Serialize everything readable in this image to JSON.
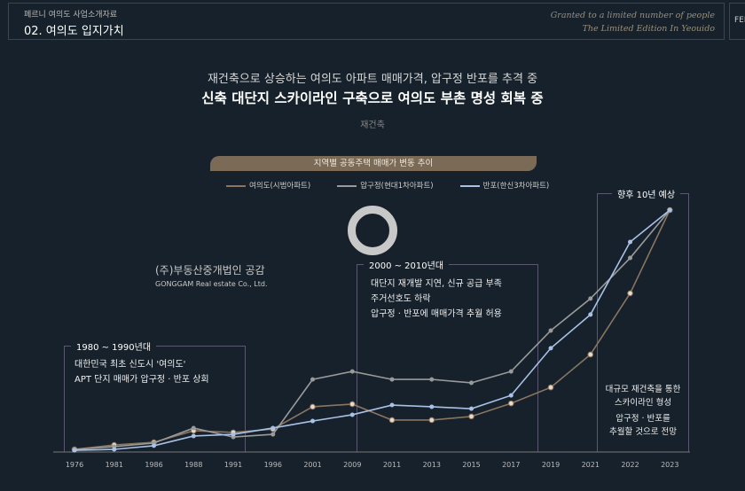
{
  "header": {
    "subtitle": "페르니 여의도 사업소개자료",
    "title": "02. 여의도 입지가치",
    "slogan_line1": "Granted to a limited number of people",
    "slogan_line2": "The Limited Edition In Yeouido",
    "logo": "FERNNI"
  },
  "headline": {
    "line1": "재건축으로 상승하는 여의도 아파트 매매가격, 압구정 반포를 추격 중",
    "line2": "신축 대단지 스카이라인 구축으로 여의도 부촌 명성 회복 중",
    "tag": "재건축"
  },
  "watermark": {
    "name": "(주)부동산중개법인 공감",
    "sub": "GONGGAM Real estate Co., Ltd."
  },
  "annotations": [
    {
      "title": "1980 ~ 1990년대",
      "lines": [
        "대한민국 최초 신도시 '여의도'",
        "APT 단지 매매가 압구정 · 반포 상회"
      ]
    },
    {
      "title": "2000 ~ 2010년대",
      "lines": [
        "대단지 재개발 지연, 신규 공급 부족",
        "주거선호도 하락",
        "압구정 · 반포에 매매가격 추월 허용"
      ]
    },
    {
      "title": "향후 10년 예상",
      "lines": [
        "대규모 재건축을 통한",
        "스카이라인 형성",
        "압구정 · 반포를",
        "추월할 것으로 전망"
      ]
    }
  ],
  "chart_data": {
    "type": "line",
    "title": "지역별 공동주택 매매가 변동 추이",
    "xlabel": "",
    "ylabel": "",
    "ylim": [
      0,
      100
    ],
    "grid": false,
    "legend": "top",
    "categories": [
      "1976",
      "1981",
      "1986",
      "1988",
      "1991",
      "1996",
      "2001",
      "2009",
      "2011",
      "2013",
      "2015",
      "2017",
      "2019",
      "2021",
      "2022",
      "2023"
    ],
    "series": [
      {
        "name": "여의도(시범아파트)",
        "color": "#8a7660",
        "values": [
          1.1,
          2.9,
          4.0,
          8.8,
          8.1,
          9.5,
          18.7,
          19.8,
          13.2,
          13.2,
          14.7,
          20.1,
          26.7,
          40.3,
          65.6,
          100
        ]
      },
      {
        "name": "압구정(현대1차아파트)",
        "color": "#9a9a9a",
        "values": [
          1.1,
          2.2,
          3.7,
          9.9,
          6.2,
          7.3,
          30.0,
          33.3,
          30.0,
          30.0,
          28.6,
          33.3,
          50.2,
          63.4,
          80.2,
          100
        ]
      },
      {
        "name": "반포(한신3차아파트)",
        "color": "#a9c1e6",
        "values": [
          0.7,
          1.1,
          2.6,
          6.6,
          7.3,
          9.9,
          12.8,
          15.4,
          19.4,
          18.7,
          17.9,
          23.4,
          42.9,
          56.8,
          86.8,
          100
        ]
      }
    ]
  }
}
